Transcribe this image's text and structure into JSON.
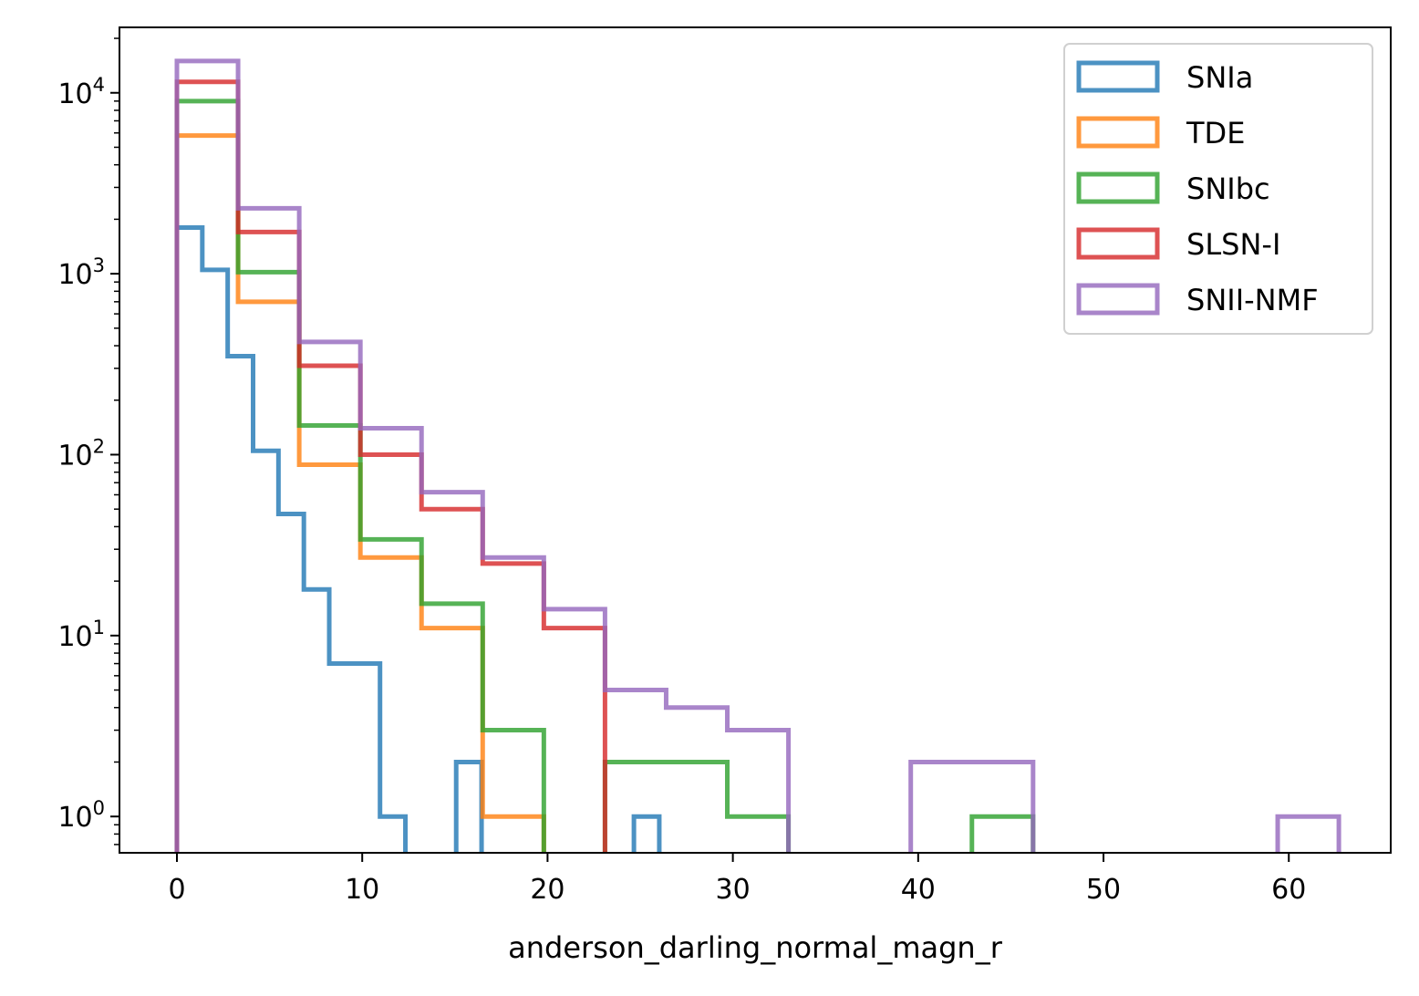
{
  "chart_data": {
    "type": "histogram",
    "xlabel": "anderson_darling_normal_magn_r",
    "ylabel": "",
    "x_scale": "linear",
    "y_scale": "log",
    "xlim": [
      -3.1,
      65.5
    ],
    "ylim": [
      0.63,
      23000
    ],
    "x_ticks": [
      0,
      10,
      20,
      30,
      40,
      50,
      60
    ],
    "y_ticks": [
      {
        "value": 1,
        "base": "10",
        "exp": "0"
      },
      {
        "value": 10,
        "base": "10",
        "exp": "1"
      },
      {
        "value": 100,
        "base": "10",
        "exp": "2"
      },
      {
        "value": 1000,
        "base": "10",
        "exp": "3"
      },
      {
        "value": 10000,
        "base": "10",
        "exp": "4"
      }
    ],
    "legend_position": "upper right",
    "grid": false,
    "series": [
      {
        "name": "SNIa",
        "color": "#1f77b4",
        "bin_edges": [
          0,
          1.37,
          2.74,
          4.11,
          5.48,
          6.85,
          8.22,
          9.59,
          10.96,
          12.33,
          13.7,
          15.07,
          16.44,
          17.81,
          19.18,
          20.55,
          21.92,
          23.29,
          24.66,
          26.03
        ],
        "counts": [
          1800,
          1050,
          350,
          105,
          47,
          18,
          7,
          7,
          1,
          0,
          0,
          2,
          0,
          0,
          0,
          0,
          0,
          0,
          1
        ]
      },
      {
        "name": "TDE",
        "color": "#ff7f0e",
        "bin_edges": [
          0,
          3.3,
          6.6,
          9.9,
          13.2,
          16.5,
          19.8
        ],
        "counts": [
          5800,
          700,
          88,
          27,
          11,
          1
        ]
      },
      {
        "name": "SNIbc",
        "color": "#2ca02c",
        "bin_edges": [
          0,
          3.3,
          6.6,
          9.9,
          13.2,
          16.5,
          19.8,
          23.1,
          26.4,
          29.7,
          33.0,
          36.3,
          39.6,
          42.9,
          46.2
        ],
        "counts": [
          9000,
          1020,
          145,
          34,
          15,
          3,
          0,
          2,
          2,
          1,
          0,
          0,
          0,
          1
        ]
      },
      {
        "name": "SLSN-I",
        "color": "#d62728",
        "bin_edges": [
          0,
          3.3,
          6.6,
          9.9,
          13.2,
          16.5,
          19.8,
          23.1
        ],
        "counts": [
          11500,
          1700,
          310,
          100,
          50,
          25,
          11
        ]
      },
      {
        "name": "SNII-NMF",
        "color": "#9467bd",
        "bin_edges": [
          0,
          3.3,
          6.6,
          9.9,
          13.2,
          16.5,
          19.8,
          23.1,
          26.4,
          29.7,
          33.0,
          36.3,
          39.6,
          42.9,
          46.2,
          49.5,
          52.8,
          56.1,
          59.4,
          62.7
        ],
        "counts": [
          15000,
          2300,
          420,
          140,
          62,
          27,
          14,
          5,
          4,
          3,
          0,
          0,
          2,
          2,
          0,
          0,
          0,
          0,
          1
        ]
      }
    ]
  }
}
